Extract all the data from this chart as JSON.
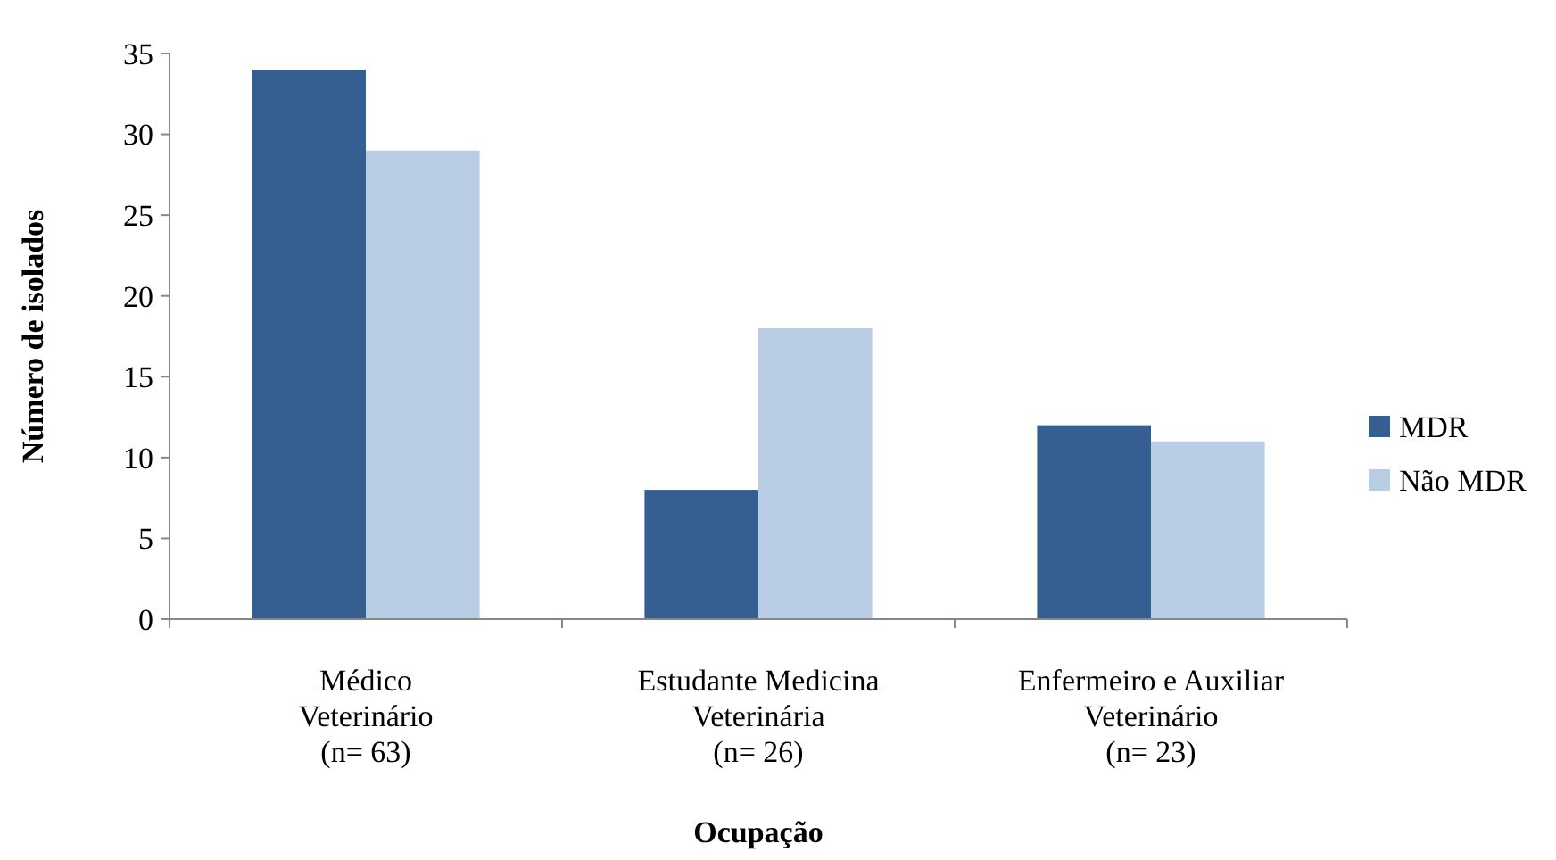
{
  "chart_data": {
    "type": "bar",
    "xlabel": "Ocupação",
    "ylabel": "Número de isolados",
    "categories": [
      "Médico\nVeterinário\n(n= 63)",
      "Estudante Medicina\nVeterinária\n(n=  26)",
      "Enfermeiro e Auxiliar\nVeterinário\n(n=  23)"
    ],
    "series": [
      {
        "name": "MDR",
        "color": "#355f91",
        "values": [
          34,
          8,
          12
        ]
      },
      {
        "name": "Não MDR",
        "color": "#b9cde5",
        "values": [
          29,
          18,
          11
        ]
      }
    ],
    "ylim": [
      0,
      35
    ],
    "yticks": [
      0,
      5,
      10,
      15,
      20,
      25,
      30,
      35
    ],
    "grid": false,
    "legend": "right"
  }
}
